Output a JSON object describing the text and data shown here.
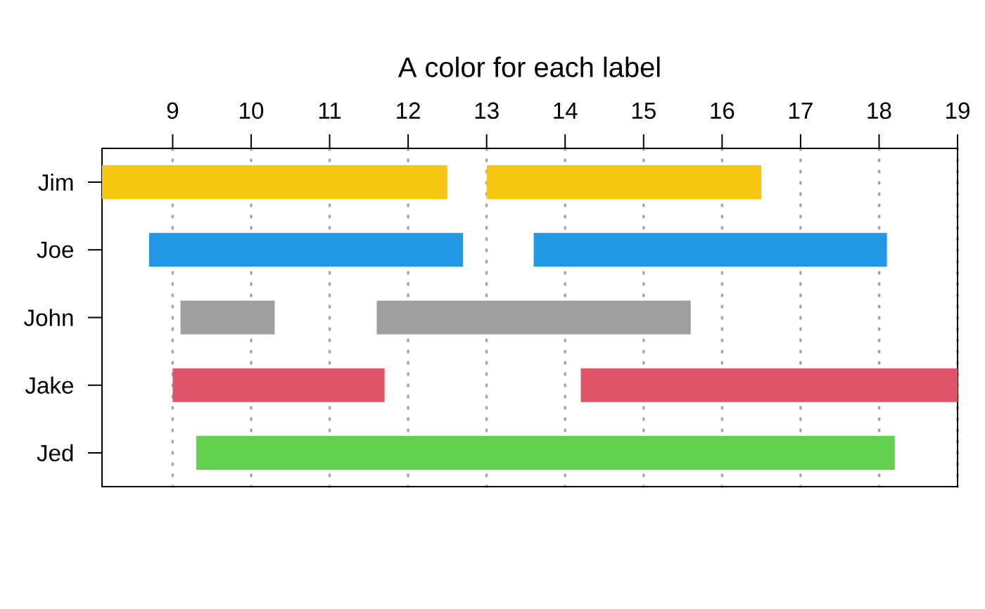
{
  "chart_data": {
    "type": "bar",
    "orientation": "horizontal",
    "title": "A color for each label",
    "categories": [
      "Jim",
      "Joe",
      "John",
      "Jake",
      "Jed"
    ],
    "series": [
      {
        "colors": [
          "#F5C710",
          "#2297E6",
          "#9E9E9E",
          "#DF536B",
          "#61D04F"
        ],
        "base": [
          8.1,
          8.7,
          9.1,
          9.0,
          9.3
        ],
        "values": [
          4.4,
          4.0,
          1.2,
          2.7,
          8.9
        ]
      },
      {
        "colors": [
          "#F5C710",
          "#2297E6",
          "#9E9E9E",
          "#DF536B",
          null
        ],
        "base": [
          13.0,
          13.6,
          11.6,
          14.2,
          null
        ],
        "values": [
          3.5,
          4.5,
          4.0,
          4.8,
          null
        ]
      }
    ],
    "xlim": [
      8.1,
      19
    ],
    "xticks": [
      9,
      10,
      11,
      12,
      13,
      14,
      15,
      16,
      17,
      18,
      19
    ],
    "grid": "x"
  }
}
